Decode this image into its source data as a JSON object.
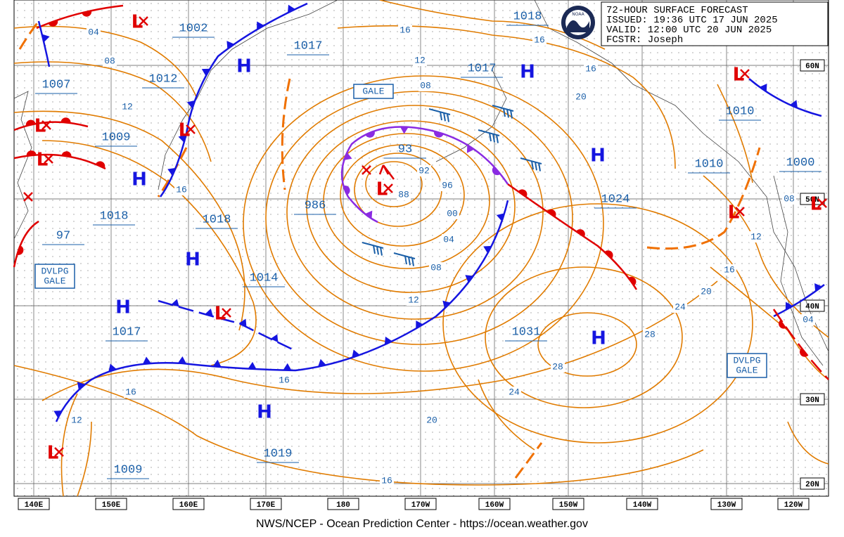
{
  "header": {
    "lines": [
      "72-HOUR SURFACE FORECAST",
      "ISSUED: 19:36 UTC 17 JUN 2025",
      "VALID:  12:00 UTC 20 JUN 2025",
      "FCSTR:  Joseph"
    ]
  },
  "logo_text": "NOAA",
  "footer": "NWS/NCEP - Ocean Prediction Center - https://ocean.weather.gov",
  "axes": {
    "longitudes": [
      "140E",
      "150E",
      "160E",
      "170E",
      "180",
      "170W",
      "160W",
      "150W",
      "140W",
      "130W",
      "120W"
    ],
    "latitudes": [
      "60N",
      "50N",
      "40N",
      "30N",
      "20N"
    ]
  },
  "symbols": {
    "high": "H",
    "low": "L"
  },
  "pressure_labels": [
    "1002",
    "1007",
    "1012",
    "1009",
    "1018",
    "97",
    "1017",
    "1018",
    "1014",
    "1017",
    "986",
    "93",
    "1017",
    "1018",
    "1010",
    "1010",
    "1000",
    "1024",
    "1031",
    "1019",
    "1009"
  ],
  "isobar_labels": [
    "04",
    "08",
    "12",
    "16",
    "16",
    "16",
    "16",
    "12",
    "08",
    "20",
    "92",
    "96",
    "88",
    "00",
    "04",
    "08",
    "12",
    "24",
    "28",
    "28",
    "24",
    "20",
    "16",
    "16",
    "12",
    "16",
    "16",
    "20",
    "12",
    "08",
    "04"
  ],
  "gale_labels": [
    [
      "GALE"
    ],
    [
      "DVLPG",
      "GALE"
    ],
    [
      "DVLPG",
      "GALE"
    ]
  ]
}
